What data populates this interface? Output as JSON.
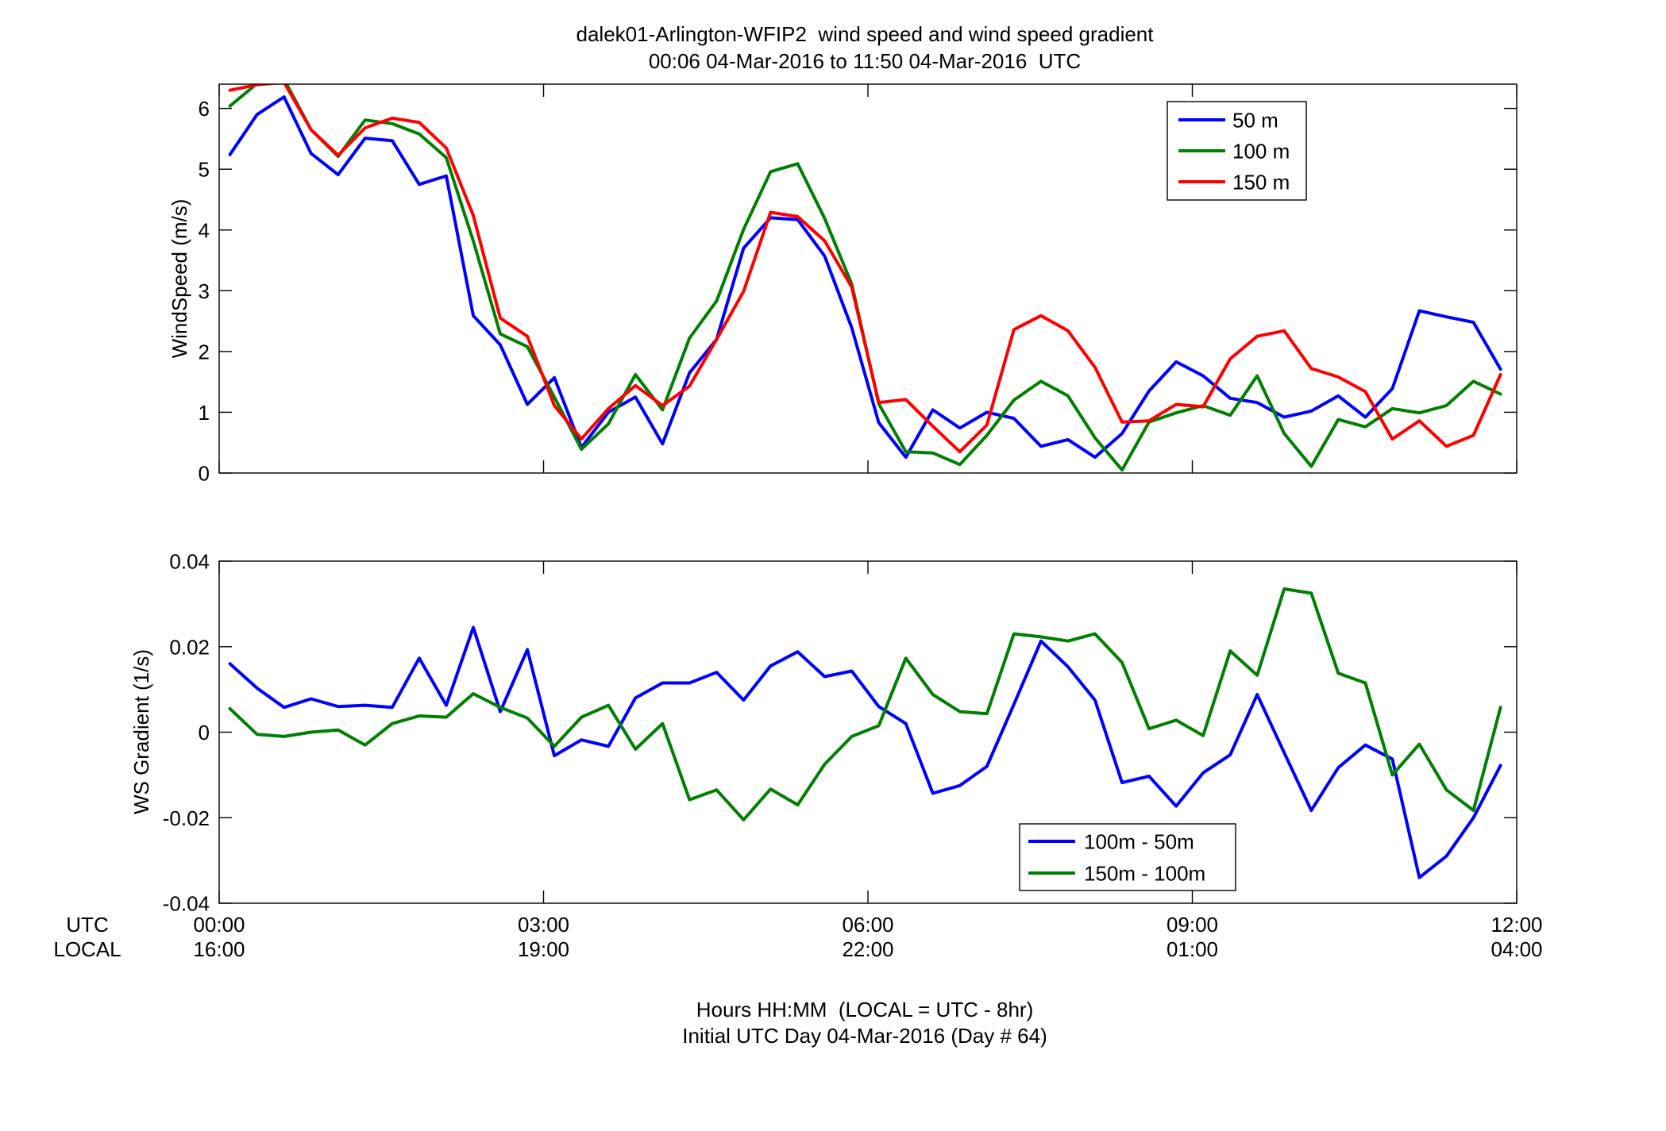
{
  "chart_data": [
    {
      "type": "line",
      "title": "dalek01-Arlington-WFIP2  wind speed and wind speed gradient",
      "subtitle": "00:06 04-Mar-2016 to 11:50 04-Mar-2016  UTC",
      "ylabel": "WindSpeed (m/s)",
      "xlim": [
        0,
        12
      ],
      "ylim": [
        0,
        6.4
      ],
      "xticks": [
        0,
        3,
        6,
        9,
        12
      ],
      "yticks": [
        0,
        1,
        2,
        3,
        4,
        5,
        6
      ],
      "ytick_labels": [
        "0",
        "1",
        "2",
        "3",
        "4",
        "5",
        "6"
      ],
      "grid": false,
      "legend": "top-right",
      "x": [
        0.1,
        0.35,
        0.6,
        0.85,
        1.1,
        1.35,
        1.6,
        1.85,
        2.1,
        2.35,
        2.6,
        2.85,
        3.1,
        3.35,
        3.6,
        3.85,
        4.1,
        4.35,
        4.6,
        4.85,
        5.1,
        5.35,
        5.6,
        5.85,
        6.1,
        6.35,
        6.6,
        6.85,
        7.1,
        7.35,
        7.6,
        7.85,
        8.1,
        8.35,
        8.6,
        8.85,
        9.1,
        9.35,
        9.6,
        9.85,
        10.1,
        10.35,
        10.6,
        10.85,
        11.1,
        11.35,
        11.6,
        11.85
      ],
      "series": [
        {
          "name": "50 m",
          "color": "#0000ff",
          "values": [
            5.24,
            5.9,
            6.19,
            5.26,
            4.91,
            5.51,
            5.47,
            4.75,
            4.89,
            2.59,
            2.11,
            1.13,
            1.57,
            0.42,
            1.0,
            1.25,
            0.48,
            1.65,
            2.2,
            3.7,
            4.2,
            4.17,
            3.57,
            2.39,
            0.83,
            0.26,
            1.04,
            0.74,
            1.0,
            0.9,
            0.44,
            0.55,
            0.26,
            0.65,
            1.35,
            1.83,
            1.6,
            1.23,
            1.16,
            0.92,
            1.02,
            1.27,
            0.92,
            1.39,
            2.67,
            2.57,
            2.48,
            1.71
          ]
        },
        {
          "name": "100 m",
          "color": "#007f00",
          "values": [
            6.04,
            6.41,
            6.48,
            5.65,
            5.21,
            5.81,
            5.75,
            5.58,
            5.19,
            3.82,
            2.29,
            2.08,
            1.25,
            0.39,
            0.81,
            1.62,
            1.04,
            2.22,
            2.83,
            4.01,
            4.96,
            5.09,
            4.19,
            3.11,
            1.14,
            0.35,
            0.33,
            0.14,
            0.62,
            1.2,
            1.51,
            1.27,
            0.58,
            0.05,
            0.84,
            0.99,
            1.11,
            0.95,
            1.6,
            0.65,
            0.11,
            0.88,
            0.76,
            1.06,
            0.99,
            1.11,
            1.51,
            1.3
          ]
        },
        {
          "name": "150 m",
          "color": "#ff0000",
          "values": [
            6.3,
            6.39,
            6.43,
            5.65,
            5.23,
            5.68,
            5.84,
            5.77,
            5.35,
            4.24,
            2.55,
            2.25,
            1.11,
            0.56,
            1.06,
            1.44,
            1.11,
            1.43,
            2.2,
            2.99,
            4.29,
            4.22,
            3.82,
            3.06,
            1.16,
            1.21,
            0.77,
            0.35,
            0.79,
            2.36,
            2.59,
            2.34,
            1.74,
            0.84,
            0.86,
            1.13,
            1.09,
            1.88,
            2.25,
            2.34,
            1.72,
            1.58,
            1.34,
            0.56,
            0.86,
            0.44,
            0.62,
            1.62
          ]
        }
      ]
    },
    {
      "type": "line",
      "ylabel": "WS Gradient (1/s)",
      "xlabel": "Hours HH:MM  (LOCAL = UTC - 8hr)",
      "xlabel_line2": "Initial UTC Day 04-Mar-2016 (Day # 64)",
      "xtick_row_labels": [
        "UTC",
        "LOCAL"
      ],
      "xtick_labels_utc": [
        "00:00",
        "03:00",
        "06:00",
        "09:00",
        "12:00"
      ],
      "xtick_labels_local": [
        "16:00",
        "19:00",
        "22:00",
        "01:00",
        "04:00"
      ],
      "xlim": [
        0,
        12
      ],
      "ylim": [
        -0.04,
        0.04
      ],
      "xticks": [
        0,
        3,
        6,
        9,
        12
      ],
      "yticks": [
        -0.04,
        -0.02,
        0,
        0.02,
        0.04
      ],
      "ytick_labels": [
        "-0.04",
        "-0.02",
        "0",
        "0.02",
        "0.04"
      ],
      "grid": false,
      "legend": "lower-right",
      "x": [
        0.1,
        0.35,
        0.6,
        0.85,
        1.1,
        1.35,
        1.6,
        1.85,
        2.1,
        2.35,
        2.6,
        2.85,
        3.1,
        3.35,
        3.6,
        3.85,
        4.1,
        4.35,
        4.6,
        4.85,
        5.1,
        5.35,
        5.6,
        5.85,
        6.1,
        6.35,
        6.6,
        6.85,
        7.1,
        7.35,
        7.6,
        7.85,
        8.1,
        8.35,
        8.6,
        8.85,
        9.1,
        9.35,
        9.6,
        9.85,
        10.1,
        10.35,
        10.6,
        10.85,
        11.1,
        11.35,
        11.6,
        11.85
      ],
      "series": [
        {
          "name": "100m - 50m",
          "color": "#0000ff",
          "values": [
            0.016,
            0.0103,
            0.0058,
            0.0078,
            0.006,
            0.0063,
            0.0058,
            0.0173,
            0.0063,
            0.0245,
            0.0048,
            0.0193,
            -0.0055,
            -0.0018,
            -0.0033,
            0.008,
            0.0115,
            0.0115,
            0.014,
            0.0075,
            0.0155,
            0.0188,
            0.013,
            0.0143,
            0.006,
            0.002,
            -0.0143,
            -0.0125,
            -0.008,
            0.0065,
            0.0213,
            0.0153,
            0.0075,
            -0.0118,
            -0.0103,
            -0.0173,
            -0.0095,
            -0.0053,
            0.0088,
            -0.0048,
            -0.0183,
            -0.0083,
            -0.003,
            -0.0063,
            -0.034,
            -0.029,
            -0.02,
            -0.0078
          ]
        },
        {
          "name": "150m - 100m",
          "color": "#007f00",
          "values": [
            0.0055,
            -0.0005,
            -0.001,
            0.0,
            0.0005,
            -0.003,
            0.002,
            0.0038,
            0.0035,
            0.009,
            0.0058,
            0.0033,
            -0.0033,
            0.0035,
            0.0063,
            -0.004,
            0.002,
            -0.0158,
            -0.0135,
            -0.0205,
            -0.0133,
            -0.017,
            -0.0075,
            -0.001,
            0.0015,
            0.0173,
            0.0088,
            0.0048,
            0.0043,
            0.023,
            0.0223,
            0.0213,
            0.023,
            0.0163,
            0.0008,
            0.0028,
            -0.0008,
            0.019,
            0.0133,
            0.0335,
            0.0325,
            0.0138,
            0.0115,
            -0.01,
            -0.0028,
            -0.0135,
            -0.0183,
            0.0058
          ]
        }
      ]
    }
  ]
}
